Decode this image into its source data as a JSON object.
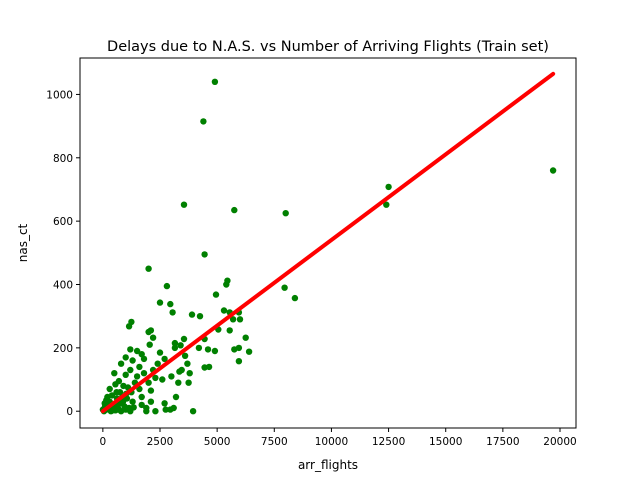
{
  "chart_data": {
    "type": "scatter",
    "title": "Delays due to N.A.S. vs Number of Arriving Flights (Train set)",
    "xlabel": "arr_flights",
    "ylabel": "nas_ct",
    "xlim": [
      -1000,
      20700
    ],
    "ylim": [
      -53,
      1115
    ],
    "xticks": [
      0,
      2500,
      5000,
      7500,
      10000,
      12500,
      15000,
      17500,
      20000
    ],
    "yticks": [
      0,
      200,
      400,
      600,
      800,
      1000
    ],
    "grid": false,
    "legend": "none",
    "colors": {
      "points": "#008000",
      "fit_line": "#ff0000"
    },
    "series": [
      {
        "kind": "points",
        "points": [
          [
            4900,
            1040
          ],
          [
            4400,
            915
          ],
          [
            19700,
            760
          ],
          [
            12500,
            708
          ],
          [
            12400,
            652
          ],
          [
            3550,
            652
          ],
          [
            5750,
            635
          ],
          [
            8000,
            625
          ],
          [
            4450,
            495
          ],
          [
            2000,
            450
          ],
          [
            5450,
            412
          ],
          [
            5400,
            400
          ],
          [
            2800,
            395
          ],
          [
            7950,
            390
          ],
          [
            4950,
            368
          ],
          [
            8400,
            357
          ],
          [
            2500,
            343
          ],
          [
            2950,
            338
          ],
          [
            5300,
            318
          ],
          [
            5550,
            312
          ],
          [
            5950,
            312
          ],
          [
            3050,
            312
          ],
          [
            1250,
            282
          ],
          [
            3900,
            305
          ],
          [
            4250,
            300
          ],
          [
            1150,
            268
          ],
          [
            5700,
            290
          ],
          [
            6000,
            290
          ],
          [
            2100,
            255
          ],
          [
            2000,
            250
          ],
          [
            2200,
            232
          ],
          [
            5050,
            258
          ],
          [
            5550,
            255
          ],
          [
            6250,
            232
          ],
          [
            4450,
            228
          ],
          [
            3550,
            228
          ],
          [
            3150,
            215
          ],
          [
            5750,
            195
          ],
          [
            5950,
            200
          ],
          [
            6400,
            188
          ],
          [
            4200,
            200
          ],
          [
            4600,
            195
          ],
          [
            2050,
            210
          ],
          [
            3400,
            208
          ],
          [
            3150,
            200
          ],
          [
            3600,
            175
          ],
          [
            4900,
            190
          ],
          [
            3700,
            150
          ],
          [
            3450,
            130
          ],
          [
            3350,
            125
          ],
          [
            3800,
            120
          ],
          [
            4450,
            138
          ],
          [
            4650,
            140
          ],
          [
            5950,
            158
          ],
          [
            2400,
            150
          ],
          [
            2700,
            165
          ],
          [
            1800,
            165
          ],
          [
            1200,
            195
          ],
          [
            1500,
            190
          ],
          [
            1700,
            180
          ],
          [
            2500,
            185
          ],
          [
            1300,
            160
          ],
          [
            1000,
            170
          ],
          [
            1600,
            140
          ],
          [
            2200,
            130
          ],
          [
            800,
            150
          ],
          [
            2300,
            105
          ],
          [
            2600,
            100
          ],
          [
            3000,
            110
          ],
          [
            3300,
            90
          ],
          [
            3750,
            90
          ],
          [
            3200,
            45
          ],
          [
            2700,
            25
          ],
          [
            2300,
            0
          ],
          [
            2750,
            5
          ],
          [
            3100,
            10
          ],
          [
            2950,
            5
          ],
          [
            3950,
            0
          ],
          [
            2100,
            30
          ],
          [
            1900,
            10
          ],
          [
            1700,
            45
          ],
          [
            1400,
            90
          ],
          [
            1000,
            115
          ],
          [
            1200,
            130
          ],
          [
            1500,
            110
          ],
          [
            1800,
            120
          ],
          [
            2000,
            90
          ],
          [
            1600,
            70
          ],
          [
            2100,
            65
          ],
          [
            1250,
            60
          ],
          [
            1700,
            20
          ],
          [
            1900,
            0
          ],
          [
            1300,
            30
          ],
          [
            500,
            120
          ],
          [
            700,
            95
          ],
          [
            900,
            80
          ],
          [
            1100,
            75
          ],
          [
            600,
            60
          ],
          [
            400,
            50
          ],
          [
            850,
            45
          ],
          [
            1050,
            40
          ],
          [
            750,
            25
          ],
          [
            950,
            15
          ],
          [
            500,
            20
          ],
          [
            300,
            30
          ],
          [
            200,
            45
          ],
          [
            100,
            15
          ],
          [
            0,
            5
          ],
          [
            50,
            0
          ],
          [
            150,
            5
          ],
          [
            250,
            10
          ],
          [
            350,
            0
          ],
          [
            450,
            8
          ],
          [
            550,
            3
          ],
          [
            650,
            12
          ],
          [
            800,
            0
          ],
          [
            1000,
            5
          ],
          [
            1150,
            10
          ],
          [
            1200,
            0
          ],
          [
            300,
            70
          ],
          [
            550,
            85
          ],
          [
            750,
            60
          ],
          [
            150,
            35
          ],
          [
            80,
            25
          ],
          [
            420,
            18
          ],
          [
            620,
            40
          ],
          [
            880,
            30
          ],
          [
            1020,
            55
          ],
          [
            700,
            5
          ],
          [
            400,
            2
          ],
          [
            260,
            22
          ],
          [
            1350,
            12
          ]
        ]
      },
      {
        "kind": "fit_line",
        "x": [
          0,
          19700
        ],
        "y": [
          0,
          1065
        ]
      }
    ]
  }
}
